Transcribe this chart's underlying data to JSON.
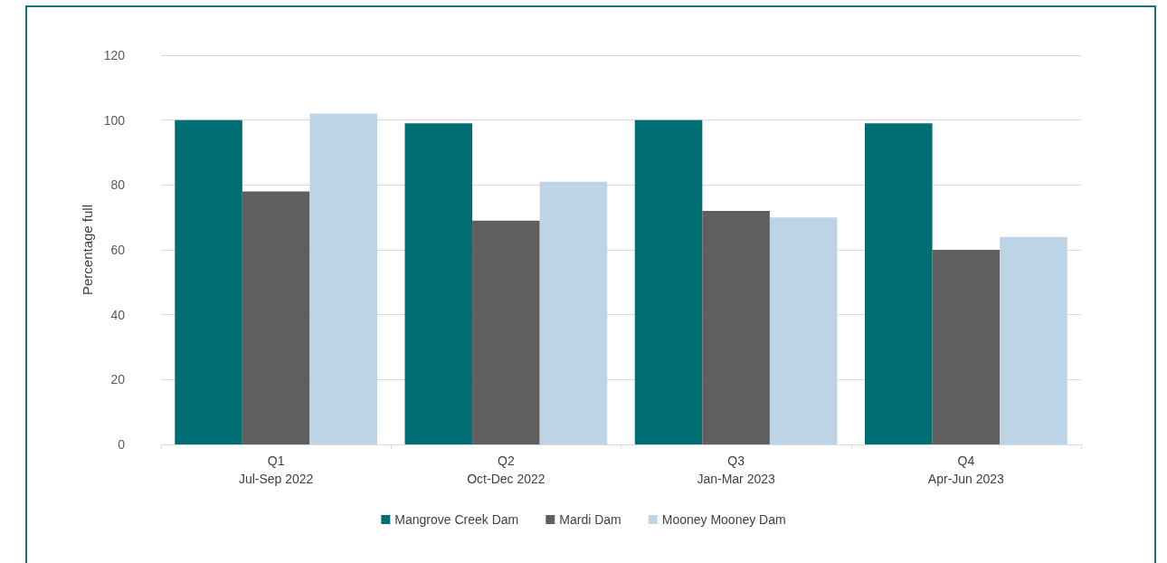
{
  "chart_data": {
    "type": "bar",
    "ylabel": "Percentage full",
    "categories": [
      "Q1\nJul-Sep 2022",
      "Q2\nOct-Dec 2022",
      "Q3\nJan-Mar 2023",
      "Q4\nApr-Jun 2023"
    ],
    "series": [
      {
        "name": "Mangrove Creek Dam",
        "color": "#006e75",
        "values": [
          100,
          99,
          100,
          99
        ]
      },
      {
        "name": "Mardi Dam",
        "color": "#5f5f5f",
        "values": [
          78,
          69,
          72,
          60
        ]
      },
      {
        "name": "Mooney Mooney Dam",
        "color": "#bdd4e6",
        "values": [
          102,
          81,
          70,
          64
        ]
      }
    ],
    "ylim": [
      0,
      120
    ],
    "yticks": [
      0,
      20,
      40,
      60,
      80,
      100,
      120
    ],
    "grid": "y",
    "legend": "bottom"
  }
}
